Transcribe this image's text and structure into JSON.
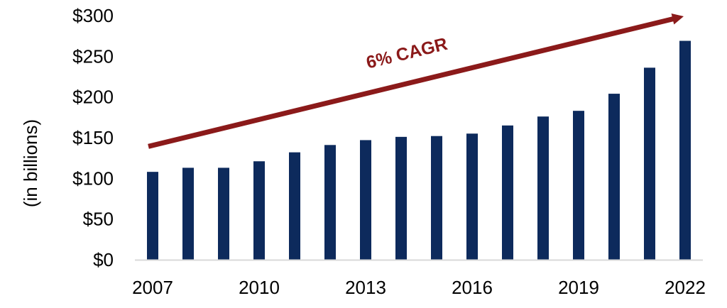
{
  "chart_data": {
    "type": "bar",
    "title": "",
    "xlabel": "",
    "ylabel": "(in billions)",
    "ylim": [
      0,
      300
    ],
    "yticks": [
      0,
      50,
      100,
      150,
      200,
      250,
      300
    ],
    "ytick_labels": [
      "$0",
      "$50",
      "$100",
      "$150",
      "$200",
      "$250",
      "$300"
    ],
    "categories": [
      "2007",
      "2008",
      "2009",
      "2010",
      "2011",
      "2012",
      "2013",
      "2014",
      "2015",
      "2016",
      "2017",
      "2018",
      "2019",
      "2020",
      "2021",
      "2022"
    ],
    "xtick_labels": [
      "2007",
      "2010",
      "2013",
      "2016",
      "2019",
      "2022"
    ],
    "values": [
      108,
      113,
      113,
      121,
      132,
      141,
      147,
      151,
      152,
      155,
      165,
      176,
      183,
      204,
      236,
      269
    ],
    "grid": false,
    "legend": null,
    "annotation": {
      "text": "6% CAGR",
      "type": "trend-arrow",
      "from_category": "2007",
      "from_value": 141,
      "to_category": "2022",
      "to_value": 300
    },
    "colors": {
      "bar": "#0d2a5c",
      "arrow": "#8b1a1a",
      "axis": "#d9d9d9",
      "text": "#000000"
    }
  }
}
